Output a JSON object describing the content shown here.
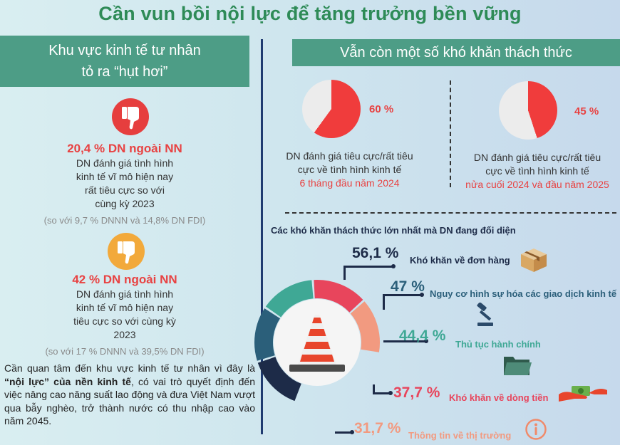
{
  "title": "Cần vun bồi nội lực để tăng trưởng bền vững",
  "left": {
    "banner_line1": "Khu vực  kinh tế tư nhân",
    "banner_line2": "tỏ ra “hụt hơi”",
    "block1": {
      "stat": "20,4 % DN ngoài NN",
      "desc_line1": "DN đánh giá tình hình",
      "desc_line2": "kinh tế vĩ mô hiện nay",
      "desc_line3": "rất tiêu cực so với",
      "desc_line4": "cùng kỳ 2023",
      "compare": "(so với 9,7 % DNNN và 14,8% DN FDI)"
    },
    "block2": {
      "stat": "42 % DN ngoài NN",
      "desc_line1": "DN đánh giá tình hình",
      "desc_line2": "kinh tế vĩ mô hiện nay",
      "desc_line3": "tiêu cực so với cùng kỳ",
      "desc_line4": "2023",
      "compare": "(so với 17 % DNNN và 39,5% DN FDI)"
    },
    "note": {
      "part1": "Cần quan tâm đến khu vực kinh tế tư nhân vì đây là ",
      "bold": "“nội lực” của nền kinh tế",
      "part2": ", có vai trò quyết định đến việc nâng cao năng suất lao động và đưa Việt Nam vượt qua bẫy nghèo, trở thành nước có thu nhập cao vào năm 2045."
    }
  },
  "right": {
    "banner": "Vẫn còn một số khó khăn thách thức",
    "pie1": {
      "value": 60,
      "value_label": "60 %",
      "desc_line1": "DN đánh giá tiêu cực/rất tiêu",
      "desc_line2": "cực về tình hình kinh tế",
      "period": "6 tháng đầu năm 2024"
    },
    "pie2": {
      "value": 45,
      "value_label": "45 %",
      "desc_line1": "DN đánh giá tiêu cực/rất tiêu",
      "desc_line2": "cực về tình hình kinh tế",
      "period": "nửa cuối 2024 và đầu năm 2025"
    },
    "challenges_title": "Các khó khăn thách thức lớn nhất mà DN đang đối diện",
    "challenges": [
      {
        "value": 56.1,
        "value_label": "56,1 %",
        "label": "Khó khăn về đơn hàng",
        "color": "#1d2b48",
        "icon": "box-icon"
      },
      {
        "value": 47,
        "value_label": "47 %",
        "label": "Nguy cơ hình sự hóa các giao dịch kinh tế",
        "color": "#2b5f7a",
        "icon": "gavel-icon"
      },
      {
        "value": 44.4,
        "value_label": "44,4 %",
        "label": "Thủ tục hành chính",
        "color": "#3fa895",
        "icon": "folder-icon"
      },
      {
        "value": 37.7,
        "value_label": "37,7 %",
        "label": "Khó khăn về dòng tiền",
        "color": "#e8455c",
        "icon": "money-hand-icon"
      },
      {
        "value": 31.7,
        "value_label": "31,7 %",
        "label": "Thông tin về thị trường",
        "color": "#f29a80",
        "icon": "info-icon"
      }
    ]
  },
  "colors": {
    "title_green": "#2e8b57",
    "banner_teal": "#4d9d86",
    "accent_red": "#e84242",
    "navy": "#1d2b48"
  }
}
